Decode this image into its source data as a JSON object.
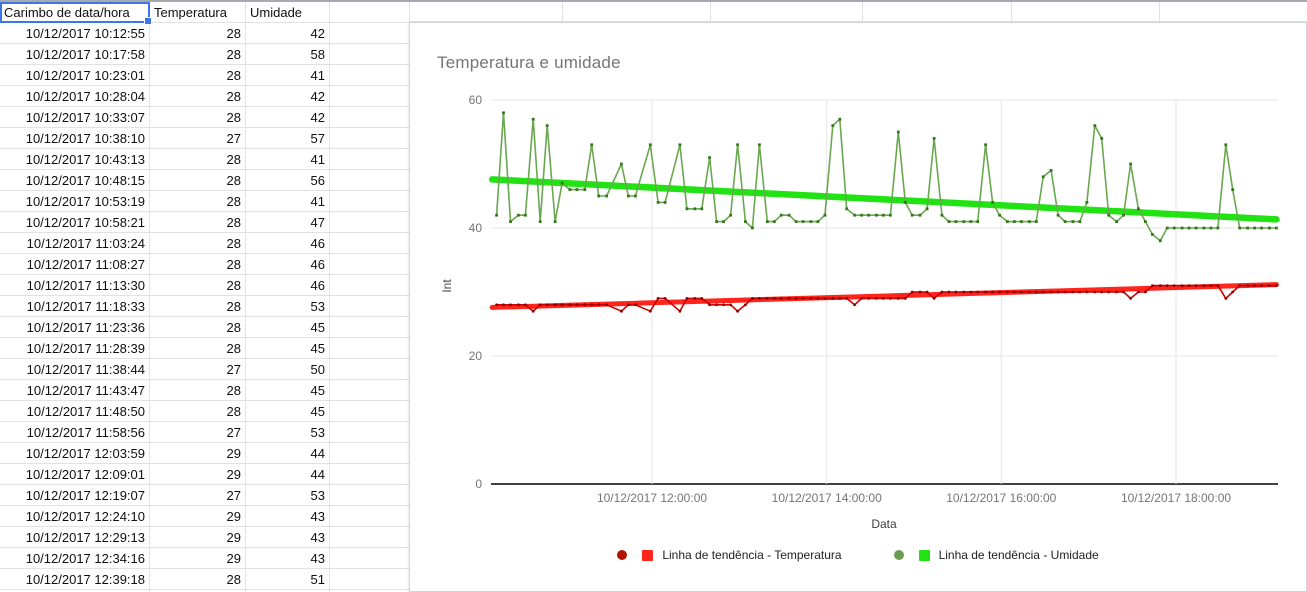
{
  "sheet": {
    "selected_cell": "A1",
    "header": [
      "Carimbo de data/hora",
      "Temperatura",
      "Umidade",
      ""
    ],
    "rows": [
      [
        "10/12/2017 10:12:55",
        28,
        42
      ],
      [
        "10/12/2017 10:17:58",
        28,
        58
      ],
      [
        "10/12/2017 10:23:01",
        28,
        41
      ],
      [
        "10/12/2017 10:28:04",
        28,
        42
      ],
      [
        "10/12/2017 10:33:07",
        28,
        42
      ],
      [
        "10/12/2017 10:38:10",
        27,
        57
      ],
      [
        "10/12/2017 10:43:13",
        28,
        41
      ],
      [
        "10/12/2017 10:48:15",
        28,
        56
      ],
      [
        "10/12/2017 10:53:19",
        28,
        41
      ],
      [
        "10/12/2017 10:58:21",
        28,
        47
      ],
      [
        "10/12/2017 11:03:24",
        28,
        46
      ],
      [
        "10/12/2017 11:08:27",
        28,
        46
      ],
      [
        "10/12/2017 11:13:30",
        28,
        46
      ],
      [
        "10/12/2017 11:18:33",
        28,
        53
      ],
      [
        "10/12/2017 11:23:36",
        28,
        45
      ],
      [
        "10/12/2017 11:28:39",
        28,
        45
      ],
      [
        "10/12/2017 11:38:44",
        27,
        50
      ],
      [
        "10/12/2017 11:43:47",
        28,
        45
      ],
      [
        "10/12/2017 11:48:50",
        28,
        45
      ],
      [
        "10/12/2017 11:58:56",
        27,
        53
      ],
      [
        "10/12/2017 12:03:59",
        29,
        44
      ],
      [
        "10/12/2017 12:09:01",
        29,
        44
      ],
      [
        "10/12/2017 12:19:07",
        27,
        53
      ],
      [
        "10/12/2017 12:24:10",
        29,
        43
      ],
      [
        "10/12/2017 12:29:13",
        29,
        43
      ],
      [
        "10/12/2017 12:34:16",
        29,
        43
      ],
      [
        "10/12/2017 12:39:18",
        28,
        51
      ]
    ]
  },
  "chart_data": {
    "type": "line",
    "title": "Temperatura e umidade",
    "xlabel": "Data",
    "ylabel": "Int",
    "ylim": [
      0,
      60
    ],
    "y_ticks": [
      60,
      40,
      20,
      0
    ],
    "x_ticks": [
      {
        "hour": 12,
        "label": "10/12/2017 12:00:00"
      },
      {
        "hour": 14,
        "label": "10/12/2017 14:00:00"
      },
      {
        "hour": 16,
        "label": "10/12/2017 16:00:00"
      },
      {
        "hour": 18,
        "label": "10/12/2017 18:00:00"
      }
    ],
    "x_hours": [
      10.22,
      10.3,
      10.38,
      10.47,
      10.55,
      10.64,
      10.72,
      10.8,
      10.89,
      10.97,
      11.06,
      11.14,
      11.23,
      11.31,
      11.39,
      11.48,
      11.65,
      11.73,
      11.81,
      11.98,
      12.07,
      12.15,
      12.32,
      12.4,
      12.49,
      12.57,
      12.66,
      12.74,
      12.82,
      12.9,
      12.98,
      13.07,
      13.15,
      13.23,
      13.32,
      13.4,
      13.48,
      13.57,
      13.65,
      13.73,
      13.82,
      13.9,
      13.98,
      14.07,
      14.15,
      14.23,
      14.32,
      14.4,
      14.48,
      14.57,
      14.65,
      14.73,
      14.82,
      14.9,
      14.98,
      15.07,
      15.15,
      15.23,
      15.32,
      15.4,
      15.48,
      15.57,
      15.65,
      15.73,
      15.82,
      15.9,
      15.98,
      16.07,
      16.15,
      16.23,
      16.32,
      16.4,
      16.48,
      16.57,
      16.65,
      16.73,
      16.82,
      16.9,
      16.98,
      17.07,
      17.15,
      17.23,
      17.32,
      17.4,
      17.48,
      17.57,
      17.65,
      17.73,
      17.82,
      17.9,
      17.98,
      18.07,
      18.15,
      18.23,
      18.32,
      18.4,
      18.48,
      18.57,
      18.65,
      18.73,
      18.82,
      18.9,
      18.98,
      19.07,
      19.15
    ],
    "series": [
      {
        "name": "Temperatura",
        "color": "#cc0000",
        "marker": "#8a0000",
        "values": [
          28,
          28,
          28,
          28,
          28,
          27,
          28,
          28,
          28,
          28,
          28,
          28,
          28,
          28,
          28,
          28,
          27,
          28,
          28,
          27,
          29,
          29,
          27,
          29,
          29,
          29,
          28,
          28,
          28,
          28,
          27,
          28,
          29,
          29,
          29,
          29,
          29,
          29,
          29,
          29,
          29,
          29,
          29,
          29,
          29,
          29,
          28,
          29,
          29,
          29,
          29,
          29,
          29,
          29,
          30,
          30,
          30,
          29,
          30,
          30,
          30,
          30,
          30,
          30,
          30,
          30,
          30,
          30,
          30,
          30,
          30,
          30,
          30,
          30,
          30,
          30,
          30,
          30,
          30,
          30,
          30,
          30,
          30,
          30,
          29,
          30,
          30,
          31,
          31,
          31,
          31,
          31,
          31,
          31,
          31,
          31,
          31,
          29,
          30,
          31,
          31,
          31,
          31,
          31,
          31
        ]
      },
      {
        "name": "Umidade",
        "color": "#6aa84f",
        "marker": "#38761d",
        "values": [
          42,
          58,
          41,
          42,
          42,
          57,
          41,
          56,
          41,
          47,
          46,
          46,
          46,
          53,
          45,
          45,
          50,
          45,
          45,
          53,
          44,
          44,
          53,
          43,
          43,
          43,
          51,
          41,
          41,
          42,
          53,
          41,
          40,
          53,
          41,
          41,
          42,
          42,
          41,
          41,
          41,
          41,
          42,
          56,
          57,
          43,
          42,
          42,
          42,
          42,
          42,
          42,
          55,
          44,
          42,
          42,
          43,
          54,
          42,
          41,
          41,
          41,
          41,
          41,
          53,
          44,
          42,
          41,
          41,
          41,
          41,
          41,
          48,
          49,
          42,
          41,
          41,
          41,
          44,
          56,
          54,
          42,
          41,
          42,
          50,
          43,
          41,
          39,
          38,
          40,
          40,
          40,
          40,
          40,
          40,
          40,
          40,
          53,
          46,
          40,
          40,
          40,
          40,
          40,
          40
        ]
      }
    ],
    "trendlines": [
      {
        "name": "Linha de tendência - Temperatura",
        "color": "#ff241c",
        "width": 5,
        "x": [
          10.17,
          19.15
        ],
        "values": [
          27.6,
          31.15
        ]
      },
      {
        "name": "Linha de tendência - Umidade",
        "color": "#21e212",
        "width": 6.5,
        "x": [
          10.17,
          19.15
        ],
        "values": [
          47.6,
          41.35
        ]
      }
    ],
    "legend": [
      {
        "circle": "#b11500",
        "square": "#ff241c",
        "label": "Linha de tendência - Temperatura"
      },
      {
        "circle": "#6d9d52",
        "square": "#21e212",
        "label": "Linha de tendência - Umidade"
      }
    ],
    "grid": true,
    "legend_position": "bottom"
  }
}
